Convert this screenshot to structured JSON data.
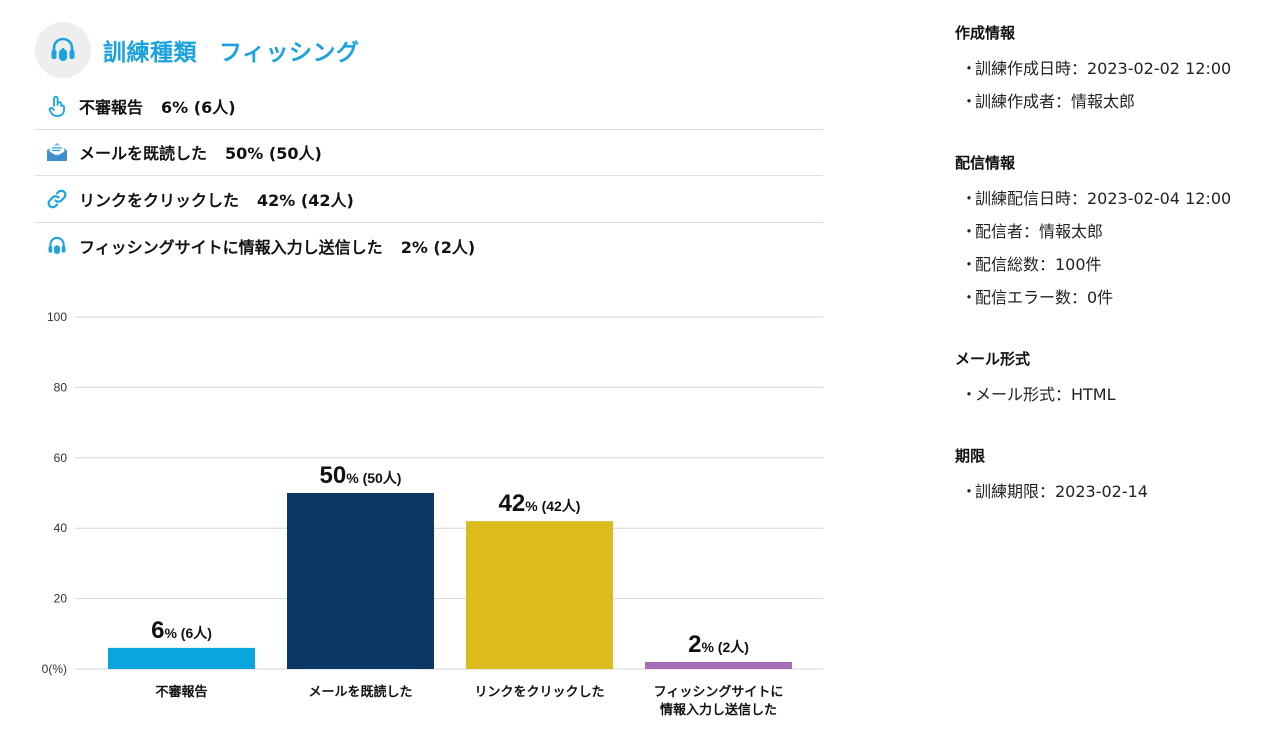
{
  "header": {
    "title_prefix": "訓練種類",
    "title_value": "フィッシング",
    "icon": "headset-icon",
    "accent": "#1aa3de"
  },
  "stats": [
    {
      "label": "不審報告",
      "value": "6% (6人)",
      "icon": "hand-pointer-icon"
    },
    {
      "label": "メールを既読した",
      "value": "50% (50人)",
      "icon": "open-mail-icon"
    },
    {
      "label": "リンクをクリックした",
      "value": "42% (42人)",
      "icon": "link-icon"
    },
    {
      "label": "フィッシングサイトに情報入力し送信した",
      "value": "2% (2人)",
      "icon": "headset-icon"
    }
  ],
  "side": {
    "sections": [
      {
        "heading": "作成情報",
        "items": [
          "訓練作成日時：2023-02-02 12:00",
          "訓練作成者：情報太郎"
        ]
      },
      {
        "heading": "配信情報",
        "items": [
          "訓練配信日時：2023-02-04 12:00",
          "配信者：情報太郎",
          "配信総数：100件",
          "配信エラー数：0件"
        ]
      },
      {
        "heading": "メール形式",
        "items": [
          "メール形式：HTML"
        ]
      },
      {
        "heading": "期限",
        "items": [
          "訓練期限：2023-02-14"
        ]
      }
    ],
    "bullet": "・"
  },
  "chart_data": {
    "type": "bar",
    "categories": [
      [
        "不審報告"
      ],
      [
        "メールを既読した"
      ],
      [
        "リンクをクリックした"
      ],
      [
        "フィッシングサイトに",
        "情報入力し送信した"
      ]
    ],
    "values": [
      6,
      50,
      42,
      2
    ],
    "value_labels_main": [
      "6",
      "50",
      "42",
      "2"
    ],
    "value_labels_sub": [
      "% (6人)",
      "% (50人)",
      "% (42人)",
      "% (2人)"
    ],
    "colors": [
      "#0aa5de",
      "#0b3767",
      "#dcbc1c",
      "#a56db5"
    ],
    "ylim": [
      0,
      100
    ],
    "yticks": [
      0,
      20,
      40,
      60,
      80,
      100
    ],
    "ytick_labels": [
      "0(%)",
      "20",
      "40",
      "60",
      "80",
      "100"
    ],
    "grid": true
  }
}
